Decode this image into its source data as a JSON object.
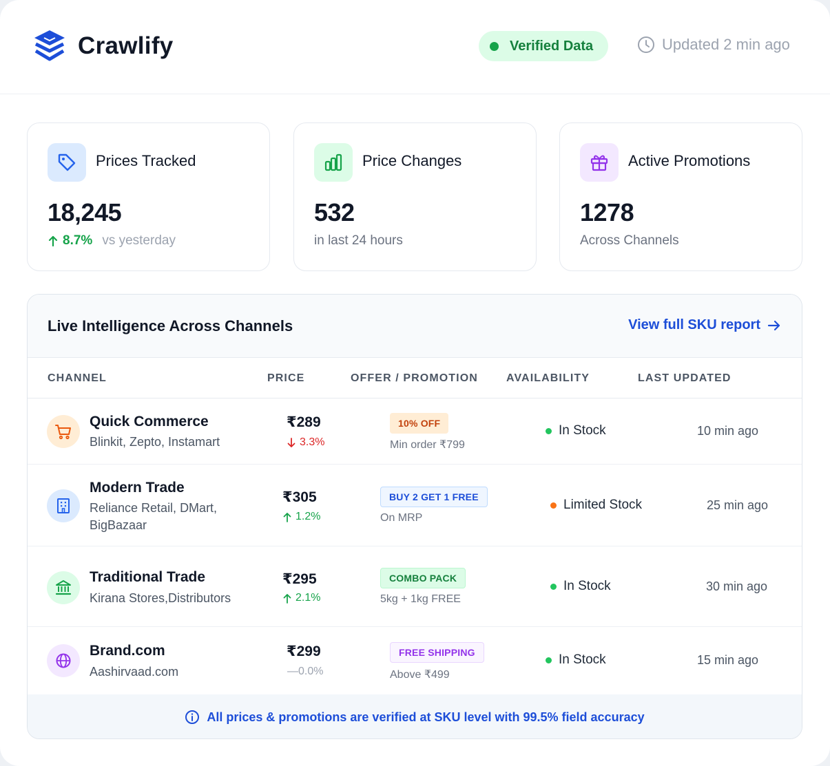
{
  "brand": {
    "name": "Crawlify",
    "icon": "layers-icon",
    "color": "#1d4ed8"
  },
  "header": {
    "verified_label": "Verified Data",
    "updated_label": "Updated 2 min ago",
    "updated_icon": "clock-icon"
  },
  "stats": [
    {
      "title": "Prices Tracked",
      "icon": "tag-icon",
      "value": "18,245",
      "trend": "8.7%",
      "trend_direction": "up",
      "sub": "vs yesterday",
      "icon_color": "#2563eb",
      "icon_bg": "#dbeafe"
    },
    {
      "title": "Price Changes",
      "icon": "bar-chart-icon",
      "value": "532",
      "sub": "in last 24 hours",
      "icon_color": "#16a34a",
      "icon_bg": "#dcfce7"
    },
    {
      "title": "Active Promotions",
      "icon": "gift-icon",
      "value": "1278",
      "sub": "Across Channels",
      "icon_color": "#9333ea",
      "icon_bg": "#f3e8ff"
    }
  ],
  "table": {
    "title": "Live Intelligence Across Channels",
    "link_label": "View full SKU report",
    "columns": [
      "CHANNEL",
      "PRICE",
      "OFFER / PROMOTION",
      "AVAILABILITY",
      "LAST UPDATED"
    ],
    "rows": [
      {
        "channel": "Quick Commerce",
        "sub": "Blinkit, Zepto, Instamart",
        "icon": "cart-icon",
        "price": "₹289",
        "delta": "3.3%",
        "delta_direction": "down",
        "offer": "10% OFF",
        "offer_sub": "Min order ₹799",
        "availability": "In Stock",
        "availability_status": "in-stock",
        "updated": "10 min ago"
      },
      {
        "channel": "Modern Trade",
        "sub": "Reliance Retail, DMart, BigBazaar",
        "icon": "building-icon",
        "price": "₹305",
        "delta": "1.2%",
        "delta_direction": "up",
        "offer": "BUY 2 GET 1 FREE",
        "offer_sub": "On MRP",
        "availability": "Limited Stock",
        "availability_status": "limited",
        "updated": "25 min ago"
      },
      {
        "channel": "Traditional Trade",
        "sub": "Kirana Stores,Distributors",
        "icon": "bank-icon",
        "price": "₹295",
        "delta": "2.1%",
        "delta_direction": "up",
        "offer": "COMBO PACK",
        "offer_sub": "5kg + 1kg FREE",
        "availability": "In Stock",
        "availability_status": "in-stock",
        "updated": "30 min ago"
      },
      {
        "channel": "Brand.com",
        "sub": "Aashirvaad.com",
        "icon": "globe-icon",
        "price": "₹299",
        "delta": "0.0%",
        "delta_direction": "flat",
        "offer": "FREE SHIPPING",
        "offer_sub": "Above ₹499",
        "availability": "In Stock",
        "availability_status": "in-stock",
        "updated": "15 min ago"
      }
    ],
    "footer": "All prices & promotions are verified at SKU level with 99.5% field accuracy",
    "footer_icon": "info-icon"
  }
}
